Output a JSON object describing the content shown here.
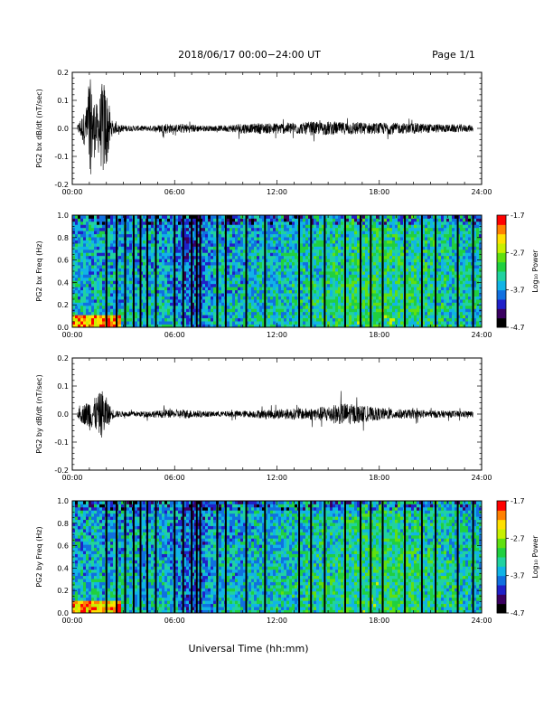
{
  "header": {
    "title": "2018/06/17  00:00−24:00 UT",
    "page": "Page 1/1"
  },
  "footer": {
    "xlabel": "Universal Time (hh:mm)"
  },
  "colorbar": {
    "label": "Log₁₀ Power",
    "ticks": [
      "-1.7",
      "-2.7",
      "-3.7",
      "-4.7"
    ],
    "tick_values": [
      -1.7,
      -2.7,
      -3.7,
      -4.7
    ],
    "range": [
      -4.7,
      -1.7
    ],
    "colormap": [
      "#000000",
      "#3a0060",
      "#2020c8",
      "#1070e0",
      "#10b4e6",
      "#20d2a0",
      "#20d040",
      "#60e010",
      "#c8f000",
      "#ffe000",
      "#ff8000",
      "#ff0000"
    ]
  },
  "chart_data": [
    {
      "type": "line",
      "title": "",
      "ylabel": "PG2 bx dB/dt (nT/sec)",
      "xlabel": "",
      "xlim": [
        0,
        24
      ],
      "ylim": [
        -0.2,
        0.2
      ],
      "x_ticks": [
        "00:00",
        "06:00",
        "12:00",
        "18:00",
        "24:00"
      ],
      "y_ticks": [
        "0.2",
        "0.1",
        "0.0",
        "-0.1",
        "-0.2"
      ],
      "y_tick_values": [
        0.2,
        0.1,
        0.0,
        -0.1,
        -0.2
      ],
      "series": [
        {
          "x": [
            0,
            0.3,
            0.5,
            0.8,
            1.0,
            1.2,
            1.5,
            1.8,
            2.0,
            2.3,
            2.6,
            3.0,
            3.5,
            4.0,
            4.5,
            5.0,
            5.5,
            6.0,
            6.5,
            7.0,
            7.5,
            8.0,
            8.5,
            9.0,
            9.5,
            10.0,
            10.5,
            11.0,
            11.5,
            12.0,
            12.5,
            13.0,
            13.5,
            14.0,
            14.5,
            15.0,
            15.5,
            16.0,
            16.5,
            17.0,
            17.5,
            18.0,
            18.5,
            19.0,
            19.5,
            20.0,
            20.5,
            21.0,
            21.5,
            22.0,
            22.5,
            23.0,
            23.5,
            24.0
          ],
          "amplitude": [
            0.005,
            0.01,
            0.04,
            0.07,
            0.2,
            0.12,
            0.08,
            0.18,
            0.15,
            0.03,
            0.015,
            0.012,
            0.01,
            0.01,
            0.01,
            0.012,
            0.02,
            0.012,
            0.018,
            0.015,
            0.012,
            0.01,
            0.01,
            0.012,
            0.015,
            0.02,
            0.015,
            0.02,
            0.018,
            0.02,
            0.02,
            0.022,
            0.02,
            0.025,
            0.022,
            0.025,
            0.022,
            0.022,
            0.025,
            0.022,
            0.02,
            0.02,
            0.022,
            0.02,
            0.018,
            0.02,
            0.018,
            0.016,
            0.015,
            0.014,
            0.014,
            0.013,
            0.012,
            0.01
          ]
        }
      ]
    },
    {
      "type": "heatmap",
      "title": "",
      "ylabel": "PG2 bx Freq (Hz)",
      "xlabel": "",
      "xlim": [
        0,
        24
      ],
      "ylim": [
        0,
        1
      ],
      "x_ticks": [
        "00:00",
        "06:00",
        "12:00",
        "18:00",
        "24:00"
      ],
      "y_ticks": [
        "1.0",
        "0.8",
        "0.6",
        "0.4",
        "0.2",
        "0.0"
      ],
      "y_tick_values": [
        1.0,
        0.8,
        0.6,
        0.4,
        0.2,
        0.0
      ],
      "data_gap_hours": [
        2.0,
        2.6,
        3.1,
        3.6,
        4.0,
        4.4,
        4.9,
        6.0,
        6.5,
        7.0,
        7.3,
        7.5,
        8.5,
        9.0,
        10.2,
        11.3,
        13.3,
        14.0,
        14.8,
        16.0,
        16.9,
        17.5,
        18.2,
        19.5,
        20.5,
        21.3,
        22.6,
        23.5
      ]
    },
    {
      "type": "line",
      "title": "",
      "ylabel": "PG2 by dB/dt (nT/sec)",
      "xlabel": "",
      "xlim": [
        0,
        24
      ],
      "ylim": [
        -0.2,
        0.2
      ],
      "x_ticks": [
        "00:00",
        "06:00",
        "12:00",
        "18:00",
        "24:00"
      ],
      "y_ticks": [
        "0.2",
        "0.1",
        "0.0",
        "-0.1",
        "-0.2"
      ],
      "y_tick_values": [
        0.2,
        0.1,
        0.0,
        -0.1,
        -0.2
      ],
      "series": [
        {
          "x": [
            0,
            0.3,
            0.5,
            0.8,
            1.0,
            1.2,
            1.5,
            1.8,
            2.0,
            2.3,
            2.6,
            3.0,
            3.5,
            4.0,
            4.5,
            5.0,
            5.5,
            6.0,
            6.5,
            7.0,
            7.5,
            8.0,
            8.5,
            9.0,
            9.5,
            10.0,
            10.5,
            11.0,
            11.5,
            12.0,
            12.5,
            13.0,
            13.5,
            14.0,
            14.5,
            15.0,
            15.5,
            16.0,
            16.5,
            17.0,
            17.5,
            18.0,
            18.5,
            19.0,
            19.5,
            20.0,
            20.5,
            21.0,
            21.5,
            22.0,
            22.5,
            23.0,
            23.5,
            24.0
          ],
          "amplitude": [
            0.005,
            0.012,
            0.03,
            0.04,
            0.06,
            0.05,
            0.07,
            0.09,
            0.06,
            0.02,
            0.012,
            0.01,
            0.01,
            0.01,
            0.012,
            0.012,
            0.015,
            0.012,
            0.018,
            0.014,
            0.012,
            0.01,
            0.01,
            0.01,
            0.012,
            0.012,
            0.012,
            0.015,
            0.015,
            0.018,
            0.018,
            0.02,
            0.02,
            0.022,
            0.025,
            0.03,
            0.035,
            0.04,
            0.035,
            0.03,
            0.025,
            0.022,
            0.02,
            0.018,
            0.016,
            0.016,
            0.015,
            0.014,
            0.013,
            0.012,
            0.012,
            0.012,
            0.01,
            0.01
          ]
        }
      ]
    },
    {
      "type": "heatmap",
      "title": "",
      "ylabel": "PG2 by Freq (Hz)",
      "xlabel": "",
      "xlim": [
        0,
        24
      ],
      "ylim": [
        0,
        1
      ],
      "x_ticks": [
        "00:00",
        "06:00",
        "12:00",
        "18:00",
        "24:00"
      ],
      "y_ticks": [
        "1.0",
        "0.8",
        "0.6",
        "0.4",
        "0.2",
        "0.0"
      ],
      "y_tick_values": [
        1.0,
        0.8,
        0.6,
        0.4,
        0.2,
        0.0
      ],
      "data_gap_hours": [
        2.0,
        2.6,
        3.1,
        3.6,
        4.0,
        4.4,
        4.9,
        6.0,
        6.5,
        7.0,
        7.3,
        7.5,
        8.5,
        9.0,
        10.2,
        11.3,
        13.3,
        14.0,
        14.8,
        16.0,
        16.9,
        17.5,
        18.2,
        19.5,
        20.5,
        21.3,
        22.6,
        23.5
      ]
    }
  ]
}
